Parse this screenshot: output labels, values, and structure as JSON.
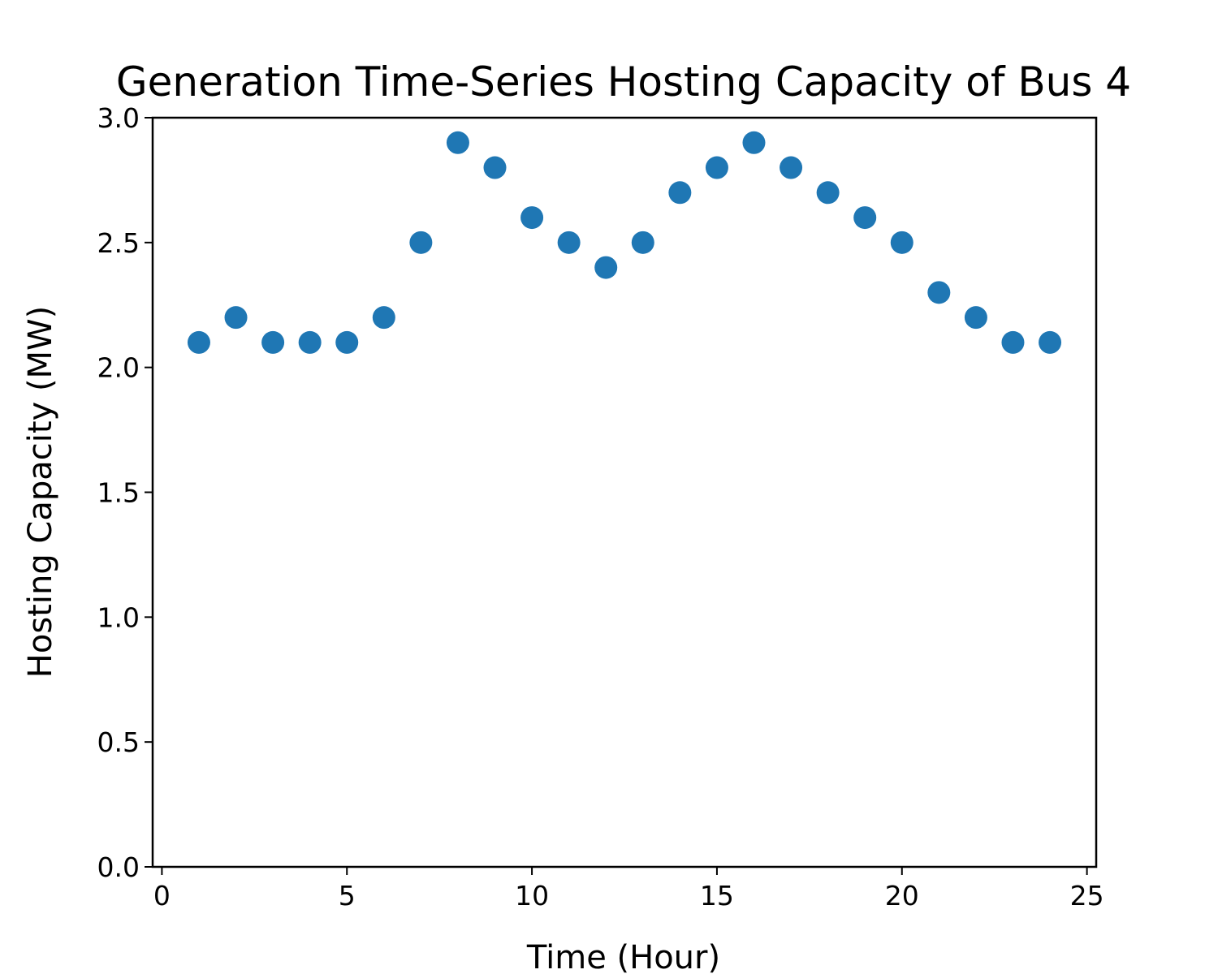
{
  "chart_data": {
    "type": "scatter",
    "title": "Generation Time-Series Hosting Capacity of Bus 4",
    "xlabel": "Time (Hour)",
    "ylabel": "Hosting Capacity (MW)",
    "xlim": [
      -0.25,
      25.25
    ],
    "ylim": [
      0,
      3.0
    ],
    "xticks": [
      0,
      5,
      10,
      15,
      20,
      25
    ],
    "xtick_labels": [
      "0",
      "5",
      "10",
      "15",
      "20",
      "25"
    ],
    "yticks": [
      0,
      0.5,
      1.0,
      1.5,
      2.0,
      2.5,
      3.0
    ],
    "ytick_labels": [
      "0.0",
      "0.5",
      "1.0",
      "1.5",
      "2.0",
      "2.5",
      "3.0"
    ],
    "grid": false,
    "legend": "none",
    "marker_color": "#1f77b4",
    "x": [
      1,
      2,
      3,
      4,
      5,
      6,
      7,
      8,
      9,
      10,
      11,
      12,
      13,
      14,
      15,
      16,
      17,
      18,
      19,
      20,
      21,
      22,
      23,
      24
    ],
    "y": [
      2.1,
      2.2,
      2.1,
      2.1,
      2.1,
      2.2,
      2.5,
      2.9,
      2.8,
      2.6,
      2.5,
      2.4,
      2.5,
      2.7,
      2.8,
      2.9,
      2.8,
      2.7,
      2.6,
      2.5,
      2.3,
      2.2,
      2.1,
      2.1
    ]
  }
}
